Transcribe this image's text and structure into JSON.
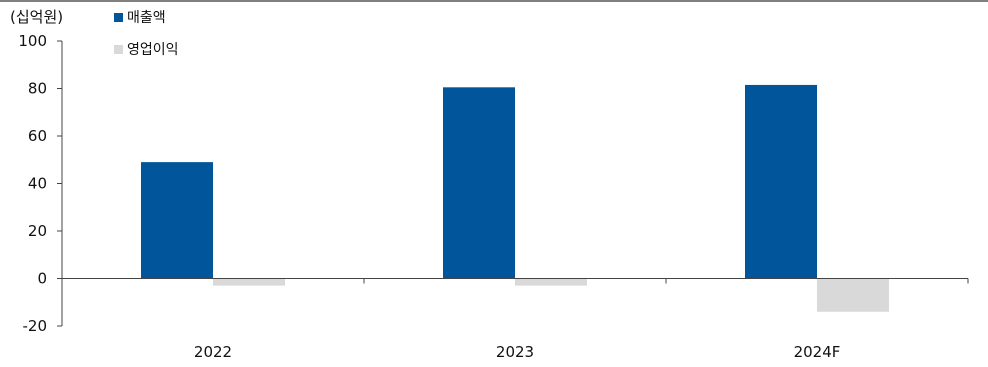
{
  "chart_data": {
    "type": "bar",
    "unit_label": "(십억원)",
    "categories": [
      "2022",
      "2023",
      "2024F"
    ],
    "series": [
      {
        "name": "매출액",
        "values": [
          49,
          80.5,
          81.5
        ]
      },
      {
        "name": "영업이익",
        "values": [
          -3,
          -3,
          -14
        ]
      }
    ],
    "yticks": [
      100,
      80,
      60,
      40,
      20,
      0,
      -20
    ],
    "ylim": [
      -20,
      100
    ],
    "grid": false,
    "legend": "top-left",
    "colors": {
      "매출액": "#00559b",
      "영업이익": "#d9d9d9"
    }
  }
}
